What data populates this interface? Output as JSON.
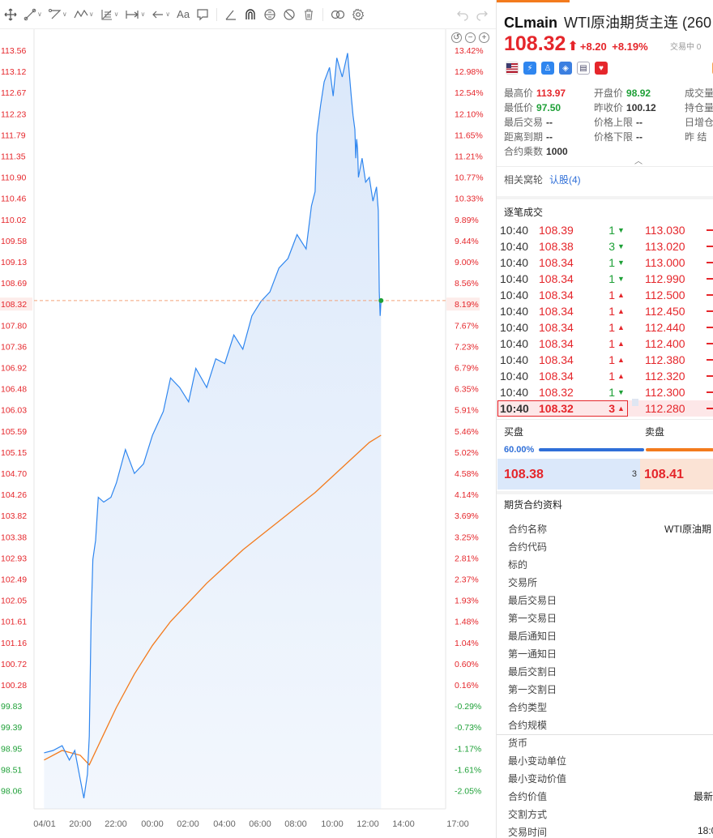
{
  "toolbar": {
    "tools": [
      "crosshair-move",
      "trend-line",
      "polyline",
      "wave",
      "fib-channel",
      "measure",
      "arrow",
      "text",
      "comment"
    ],
    "text_tool_label": "Aa",
    "colors": {
      "icon": "#666666"
    }
  },
  "chart_data": {
    "type": "line",
    "x_tick_labels": [
      "04/01",
      "20:00",
      "22:00",
      "00:00",
      "02:00",
      "04:00",
      "06:00",
      "08:00",
      "10:00",
      "12:00",
      "14:00",
      "17:00"
    ],
    "y_tick_labels": [
      "113.56",
      "113.12",
      "112.67",
      "112.23",
      "111.79",
      "111.35",
      "110.90",
      "110.46",
      "110.02",
      "109.58",
      "109.13",
      "108.69",
      "108.32",
      "107.80",
      "107.36",
      "106.92",
      "106.48",
      "106.03",
      "105.59",
      "105.15",
      "104.70",
      "104.26",
      "103.82",
      "103.38",
      "102.93",
      "102.49",
      "102.05",
      "101.61",
      "101.16",
      "100.72",
      "100.28",
      "99.83",
      "99.39",
      "98.95",
      "98.51",
      "98.06"
    ],
    "pct_tick_labels": [
      "13.42%",
      "12.98%",
      "12.54%",
      "12.10%",
      "11.65%",
      "11.21%",
      "10.77%",
      "10.33%",
      "9.89%",
      "9.44%",
      "9.00%",
      "8.56%",
      "8.19%",
      "7.67%",
      "7.23%",
      "6.79%",
      "6.35%",
      "5.91%",
      "5.46%",
      "5.02%",
      "4.58%",
      "4.14%",
      "3.69%",
      "3.25%",
      "2.81%",
      "2.37%",
      "1.93%",
      "1.48%",
      "1.04%",
      "0.60%",
      "0.16%",
      "-0.29%",
      "-0.73%",
      "-1.17%",
      "-1.61%",
      "-2.05%"
    ],
    "ylim": [
      97.5,
      113.97
    ],
    "prev_close": 100.12,
    "current_price": 108.32,
    "current_pct": "8.19%",
    "series": [
      {
        "style": "price",
        "color": "#2f86ef",
        "fill": "#dbe8fa",
        "x_hours": [
          0,
          0.5,
          1.0,
          1.4,
          1.7,
          2.0,
          2.2,
          2.4,
          2.5,
          2.6,
          2.7,
          2.85,
          3.0,
          3.3,
          3.7,
          4.0,
          4.5,
          5.0,
          5.5,
          6.0,
          6.6,
          7.0,
          7.5,
          8.0,
          8.4,
          9.0,
          9.5,
          10.0,
          10.5,
          11.0,
          11.5,
          12.0,
          12.5,
          13.0,
          13.5,
          14.0,
          14.5,
          14.8,
          15.0,
          15.1,
          15.3,
          15.5,
          15.8,
          16.0,
          16.2,
          16.5,
          16.8,
          17.0,
          17.1,
          17.2,
          17.25,
          17.3,
          17.35,
          17.4,
          17.6,
          17.8,
          18.0,
          18.2,
          18.4,
          18.5,
          18.55,
          18.6,
          18.65
        ],
        "values": [
          98.85,
          98.9,
          99.0,
          98.7,
          98.9,
          98.3,
          97.9,
          98.4,
          99.2,
          101.6,
          102.9,
          103.3,
          104.2,
          104.1,
          104.2,
          104.5,
          105.2,
          104.7,
          104.9,
          105.5,
          106.0,
          106.7,
          106.5,
          106.2,
          106.9,
          106.5,
          107.1,
          107.0,
          107.6,
          107.3,
          108.0,
          108.3,
          108.5,
          109.0,
          109.2,
          109.7,
          109.4,
          110.3,
          110.6,
          111.8,
          112.4,
          112.9,
          113.2,
          112.6,
          113.4,
          113.0,
          113.5,
          112.6,
          112.2,
          111.9,
          111.3,
          111.7,
          111.5,
          110.9,
          111.3,
          110.8,
          110.9,
          110.4,
          110.7,
          110.2,
          108.5,
          108.0,
          108.32
        ]
      },
      {
        "style": "average",
        "color": "#f37b1d",
        "x_hours": [
          0,
          1.0,
          2.0,
          2.5,
          3.0,
          4.0,
          5.0,
          6.0,
          7.0,
          8.0,
          9.0,
          10.0,
          11.0,
          12.0,
          13.0,
          14.0,
          15.0,
          16.0,
          17.0,
          18.0,
          18.65
        ],
        "values": [
          98.7,
          98.9,
          98.8,
          98.6,
          99.0,
          99.8,
          100.5,
          101.1,
          101.6,
          102.0,
          102.4,
          102.75,
          103.1,
          103.4,
          103.7,
          104.0,
          104.3,
          104.65,
          105.0,
          105.35,
          105.5
        ]
      }
    ]
  },
  "chart_controls": [
    "reset-zoom",
    "zoom-out",
    "zoom-in"
  ],
  "panel": {
    "symbol": "CLmain",
    "name": "WTI原油期货主连 (260",
    "price": "108.32",
    "arrow": "⬆",
    "change": "+8.20",
    "change_pct": "+8.19%",
    "status": "交易中 0",
    "colors": {
      "up": "#e5262b",
      "down": "#1ea037",
      "accent": "#f37b1d",
      "link": "#2f6fd8"
    },
    "stats": [
      {
        "k": "最高价",
        "v": "113.97",
        "c": "red"
      },
      {
        "k": "开盘价",
        "v": "98.92",
        "c": "green"
      },
      {
        "k": "成交量",
        "v": "",
        "c": ""
      },
      {
        "k": "最低价",
        "v": "97.50",
        "c": "green"
      },
      {
        "k": "昨收价",
        "v": "100.12",
        "c": ""
      },
      {
        "k": "持仓量",
        "v": "",
        "c": ""
      },
      {
        "k": "最后交易",
        "v": "--",
        "c": ""
      },
      {
        "k": "价格上限",
        "v": "--",
        "c": ""
      },
      {
        "k": "日增仓",
        "v": "",
        "c": ""
      },
      {
        "k": "距离到期",
        "v": "--",
        "c": ""
      },
      {
        "k": "价格下限",
        "v": "--",
        "c": ""
      },
      {
        "k": "昨 结",
        "v": "",
        "c": ""
      },
      {
        "k": "合约乘数",
        "v": "1000",
        "c": ""
      }
    ],
    "related_label": "相关窝轮",
    "related_link": "认股(4)",
    "ticks_title": "逐笔成交",
    "ticks": [
      {
        "t": "10:40",
        "p": "108.39",
        "q": "1",
        "d": "dn",
        "p2": "113.030"
      },
      {
        "t": "10:40",
        "p": "108.38",
        "q": "3",
        "d": "dn",
        "p2": "113.020"
      },
      {
        "t": "10:40",
        "p": "108.34",
        "q": "1",
        "d": "dn",
        "p2": "113.000"
      },
      {
        "t": "10:40",
        "p": "108.34",
        "q": "1",
        "d": "dn",
        "p2": "112.990"
      },
      {
        "t": "10:40",
        "p": "108.34",
        "q": "1",
        "d": "up",
        "p2": "112.500"
      },
      {
        "t": "10:40",
        "p": "108.34",
        "q": "1",
        "d": "up",
        "p2": "112.450"
      },
      {
        "t": "10:40",
        "p": "108.34",
        "q": "1",
        "d": "up",
        "p2": "112.440"
      },
      {
        "t": "10:40",
        "p": "108.34",
        "q": "1",
        "d": "up",
        "p2": "112.400"
      },
      {
        "t": "10:40",
        "p": "108.34",
        "q": "1",
        "d": "up",
        "p2": "112.380"
      },
      {
        "t": "10:40",
        "p": "108.34",
        "q": "1",
        "d": "up",
        "p2": "112.320"
      },
      {
        "t": "10:40",
        "p": "108.32",
        "q": "1",
        "d": "dn",
        "p2": "112.300"
      },
      {
        "t": "10:40",
        "p": "108.32",
        "q": "3",
        "d": "up",
        "p2": "112.280"
      }
    ],
    "bid_label": "买盘",
    "ask_label": "卖盘",
    "bid_ratio": "60.00%",
    "bid_ratio_value": 0.6,
    "bid_price": "108.38",
    "bid_qty": "3",
    "ask_price": "108.41",
    "info_title": "期货合约资料",
    "info_rows": [
      {
        "k": "合约名称",
        "v": "WTI原油期"
      },
      {
        "k": "合约代码",
        "v": ""
      },
      {
        "k": "标的",
        "v": ""
      },
      {
        "k": "交易所",
        "v": ""
      },
      {
        "k": "最后交易日",
        "v": ""
      },
      {
        "k": "第一交易日",
        "v": ""
      },
      {
        "k": "最后通知日",
        "v": ""
      },
      {
        "k": "第一通知日",
        "v": ""
      },
      {
        "k": "最后交割日",
        "v": ""
      },
      {
        "k": "第一交割日",
        "v": ""
      },
      {
        "k": "合约类型",
        "v": ""
      },
      {
        "k": "合约规模",
        "v": ""
      },
      {
        "k": "货币",
        "v": ""
      },
      {
        "k": "最小变动单位",
        "v": ""
      },
      {
        "k": "最小变动价值",
        "v": ""
      },
      {
        "k": "合约价值",
        "v": "最新"
      },
      {
        "k": "交割方式",
        "v": ""
      },
      {
        "k": "交易时间",
        "v": "18:0"
      }
    ]
  }
}
